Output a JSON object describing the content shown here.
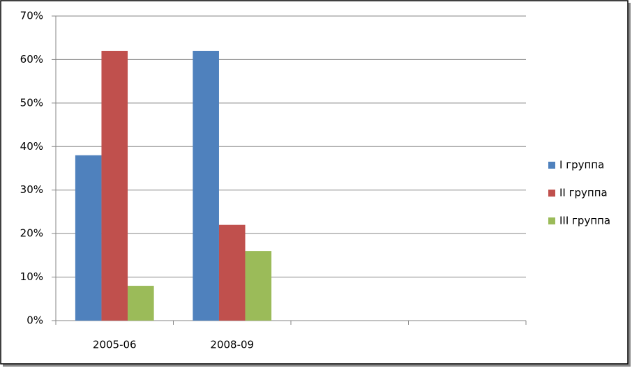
{
  "chart_data": {
    "type": "bar",
    "categories": [
      "2005-06",
      "2008-09",
      null,
      null
    ],
    "series": [
      {
        "name": "I группа",
        "color": "#4f81bd",
        "values": [
          38,
          62,
          null,
          null
        ]
      },
      {
        "name": "II группа",
        "color": "#c0504d",
        "values": [
          62,
          22,
          null,
          null
        ]
      },
      {
        "name": "III группа",
        "color": "#9bbb59",
        "values": [
          8,
          16,
          null,
          null
        ]
      }
    ],
    "ylim": [
      0,
      70
    ],
    "yticks": [
      {
        "value": 0,
        "label": "0%"
      },
      {
        "value": 10,
        "label": "10%"
      },
      {
        "value": 20,
        "label": "20%"
      },
      {
        "value": 30,
        "label": "30%"
      },
      {
        "value": 40,
        "label": "40%"
      },
      {
        "value": 50,
        "label": "50%"
      },
      {
        "value": 60,
        "label": "60%"
      },
      {
        "value": 70,
        "label": "70%"
      }
    ],
    "grid": true,
    "legend": "right"
  }
}
